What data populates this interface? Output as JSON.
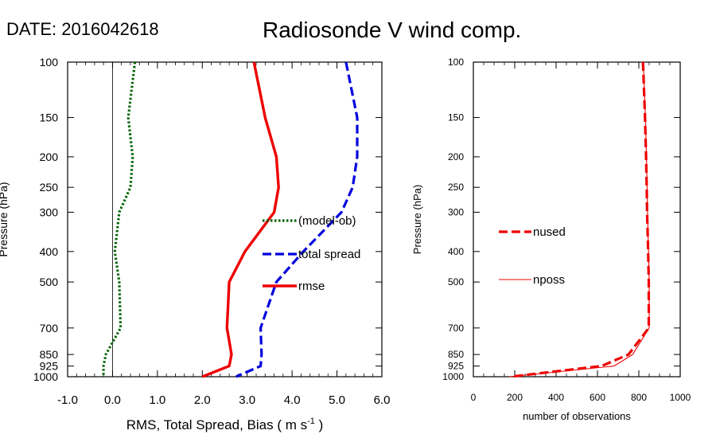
{
  "header": {
    "date_text": "DATE: 2016042618",
    "title": "Radiosonde V wind comp."
  },
  "chart_data": [
    {
      "type": "line",
      "panel": "left",
      "xlabel_main": "RMS, Total Spread, Bias ( m s",
      "xlabel_exp": "-1",
      "xlabel_tail": " )",
      "ylabel": "Pressure (hPa)",
      "xlim": [
        -1.0,
        6.0
      ],
      "xticks": [
        -1.0,
        0.0,
        1.0,
        2.0,
        3.0,
        4.0,
        5.0,
        6.0
      ],
      "xtick_labels": [
        "-1.0",
        "0.0",
        "1.0",
        "2.0",
        "3.0",
        "4.0",
        "5.0",
        "6.0"
      ],
      "ylim": [
        1000,
        100
      ],
      "yscale": "log",
      "yticks": [
        100,
        150,
        200,
        250,
        300,
        400,
        500,
        700,
        850,
        925,
        1000
      ],
      "ytick_labels": [
        "100",
        "150",
        "200",
        "250",
        "300",
        "400",
        "500",
        "700",
        "850",
        "925",
        "1000"
      ],
      "zero_line": 0,
      "legend_position": "center-right",
      "series": [
        {
          "name": "(model-ob)",
          "color": "#006400",
          "style": "dotted",
          "pressure": [
            100,
            150,
            200,
            250,
            300,
            400,
            500,
            700,
            850,
            925,
            1000
          ],
          "values": [
            0.5,
            0.35,
            0.45,
            0.4,
            0.15,
            0.05,
            0.15,
            0.18,
            -0.15,
            -0.2,
            -0.2
          ]
        },
        {
          "name": "total spread",
          "color": "#0000dd",
          "style": "dashed",
          "pressure": [
            100,
            150,
            200,
            250,
            300,
            400,
            500,
            700,
            850,
            925,
            1000
          ],
          "values": [
            5.2,
            5.45,
            5.45,
            5.35,
            5.1,
            4.25,
            3.65,
            3.3,
            3.32,
            3.3,
            2.75
          ]
        },
        {
          "name": "rmse",
          "color": "#ee0000",
          "style": "solid",
          "pressure": [
            100,
            150,
            200,
            250,
            300,
            400,
            500,
            700,
            850,
            925,
            1000
          ],
          "values": [
            3.15,
            3.4,
            3.65,
            3.7,
            3.6,
            2.95,
            2.6,
            2.55,
            2.65,
            2.6,
            2.0
          ]
        }
      ]
    },
    {
      "type": "line",
      "panel": "right",
      "xlabel": "number of observations",
      "xlim": [
        0,
        1000
      ],
      "xticks": [
        0,
        200,
        400,
        600,
        800,
        1000
      ],
      "xtick_labels": [
        "0",
        "200",
        "400",
        "600",
        "800",
        "1000"
      ],
      "ylim": [
        1000,
        100
      ],
      "yscale": "log",
      "yticks": [
        100,
        150,
        200,
        250,
        300,
        400,
        500,
        700,
        850,
        925,
        1000
      ],
      "ytick_labels": [
        "100",
        "150",
        "200",
        "250",
        "300",
        "400",
        "500",
        "700",
        "850",
        "925",
        "1000"
      ],
      "ylabel": "Pressure (hPa)",
      "legend_position": "center-left",
      "series": [
        {
          "name": "nused",
          "color": "#ee0000",
          "style": "dashed",
          "pressure": [
            100,
            150,
            200,
            250,
            300,
            400,
            500,
            700,
            850,
            925,
            1000
          ],
          "values": [
            820,
            830,
            835,
            838,
            840,
            845,
            848,
            848,
            750,
            620,
            180
          ]
        },
        {
          "name": "nposs",
          "color": "#ee0000",
          "style": "thin",
          "pressure": [
            100,
            150,
            200,
            250,
            300,
            400,
            500,
            700,
            850,
            925,
            1000
          ],
          "values": [
            822,
            832,
            837,
            840,
            842,
            847,
            850,
            850,
            770,
            680,
            175
          ]
        }
      ]
    }
  ]
}
